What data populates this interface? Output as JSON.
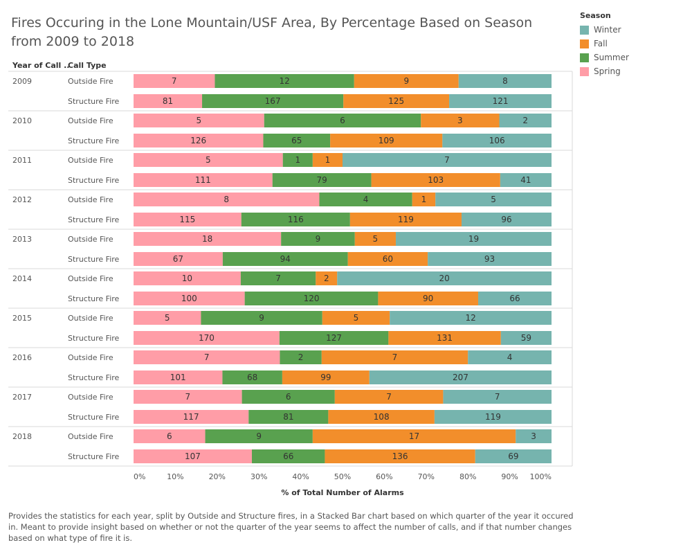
{
  "title": "Fires Occuring in the Lone Mountain/USF Area, By Percentage Based on Season from 2009 to 2018",
  "caption": "Provides the statistics for each year, split by Outside and Structure fires, in a Stacked Bar chart based on which quarter of the year it occured in. Meant to provide insight based on whether or not the quarter of the year seems to affect the number of calls, and if that number changes based on what type of fire it is.",
  "column_headers": {
    "year": "Year of Call ..",
    "type": "Call Type"
  },
  "legend": {
    "title": "Season",
    "items": [
      {
        "label": "Winter",
        "color": "#76b4ae"
      },
      {
        "label": "Fall",
        "color": "#f28e2b"
      },
      {
        "label": "Summer",
        "color": "#59a14f"
      },
      {
        "label": "Spring",
        "color": "#ff9da7"
      }
    ]
  },
  "chart_data": {
    "type": "bar",
    "orientation": "horizontal",
    "stacked": "percent",
    "xlabel": "% of Total Number of Alarms",
    "xticks": [
      "0%",
      "10%",
      "20%",
      "30%",
      "40%",
      "50%",
      "60%",
      "70%",
      "80%",
      "90%",
      "100%"
    ],
    "xlim": [
      0,
      100
    ],
    "grid": false,
    "legend_position": "top-right",
    "series_order": [
      "Spring",
      "Summer",
      "Fall",
      "Winter"
    ],
    "series_colors": {
      "Spring": "#ff9da7",
      "Summer": "#59a14f",
      "Fall": "#f28e2b",
      "Winter": "#76b4ae"
    },
    "groups": [
      {
        "year": "2009",
        "rows": [
          {
            "type": "Outside Fire",
            "values": [
              7,
              12,
              9,
              8
            ]
          },
          {
            "type": "Structure Fire",
            "values": [
              81,
              167,
              125,
              121
            ]
          }
        ]
      },
      {
        "year": "2010",
        "rows": [
          {
            "type": "Outside Fire",
            "values": [
              5,
              6,
              3,
              2
            ]
          },
          {
            "type": "Structure Fire",
            "values": [
              126,
              65,
              109,
              106
            ]
          }
        ]
      },
      {
        "year": "2011",
        "rows": [
          {
            "type": "Outside Fire",
            "values": [
              5,
              1,
              1,
              7
            ]
          },
          {
            "type": "Structure Fire",
            "values": [
              111,
              79,
              103,
              41
            ]
          }
        ]
      },
      {
        "year": "2012",
        "rows": [
          {
            "type": "Outside Fire",
            "values": [
              8,
              4,
              1,
              5
            ]
          },
          {
            "type": "Structure Fire",
            "values": [
              115,
              116,
              119,
              96
            ]
          }
        ]
      },
      {
        "year": "2013",
        "rows": [
          {
            "type": "Outside Fire",
            "values": [
              18,
              9,
              5,
              19
            ]
          },
          {
            "type": "Structure Fire",
            "values": [
              67,
              94,
              60,
              93
            ]
          }
        ]
      },
      {
        "year": "2014",
        "rows": [
          {
            "type": "Outside Fire",
            "values": [
              10,
              7,
              2,
              20
            ]
          },
          {
            "type": "Structure Fire",
            "values": [
              100,
              120,
              90,
              66
            ]
          }
        ]
      },
      {
        "year": "2015",
        "rows": [
          {
            "type": "Outside Fire",
            "values": [
              5,
              9,
              5,
              12
            ]
          },
          {
            "type": "Structure Fire",
            "values": [
              170,
              127,
              131,
              59
            ]
          }
        ]
      },
      {
        "year": "2016",
        "rows": [
          {
            "type": "Outside Fire",
            "values": [
              7,
              2,
              7,
              4
            ]
          },
          {
            "type": "Structure Fire",
            "values": [
              101,
              68,
              99,
              207
            ]
          }
        ]
      },
      {
        "year": "2017",
        "rows": [
          {
            "type": "Outside Fire",
            "values": [
              7,
              6,
              7,
              7
            ]
          },
          {
            "type": "Structure Fire",
            "values": [
              117,
              81,
              108,
              119
            ]
          }
        ]
      },
      {
        "year": "2018",
        "rows": [
          {
            "type": "Outside Fire",
            "values": [
              6,
              9,
              17,
              3
            ]
          },
          {
            "type": "Structure Fire",
            "values": [
              107,
              66,
              136,
              69
            ]
          }
        ]
      }
    ]
  }
}
